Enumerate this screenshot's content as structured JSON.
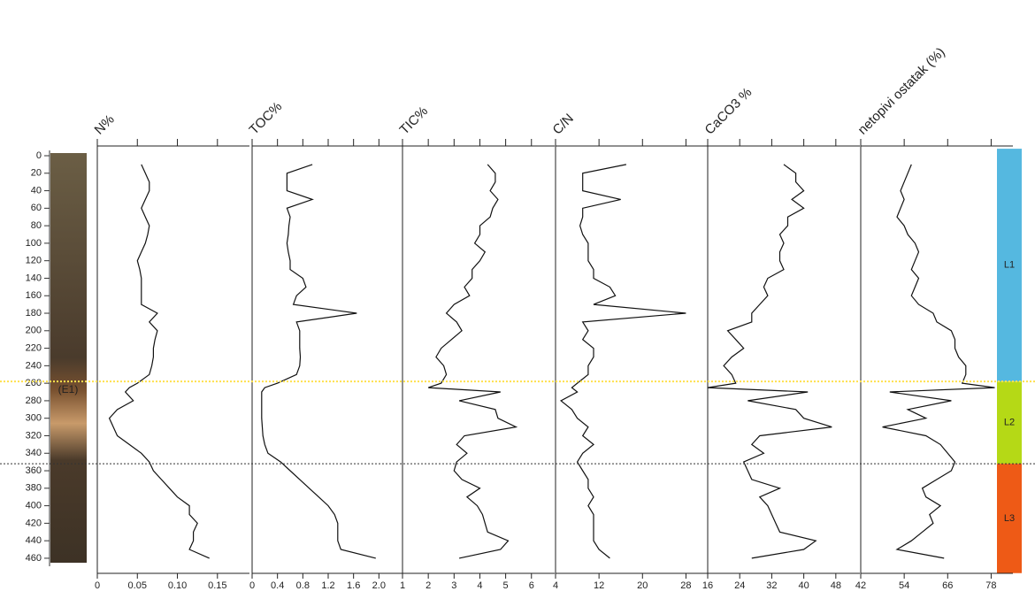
{
  "chart_data": {
    "type": "line",
    "ylim": [
      -8,
      477
    ],
    "yticks": [
      0,
      20,
      40,
      60,
      80,
      100,
      120,
      140,
      160,
      180,
      200,
      220,
      240,
      260,
      280,
      300,
      320,
      340,
      360,
      380,
      400,
      420,
      440,
      460
    ],
    "depths": [
      10,
      20,
      30,
      40,
      50,
      60,
      70,
      80,
      90,
      100,
      110,
      120,
      130,
      140,
      150,
      160,
      170,
      180,
      190,
      200,
      210,
      220,
      230,
      240,
      250,
      260,
      265,
      270,
      280,
      290,
      300,
      310,
      320,
      330,
      340,
      350,
      360,
      370,
      380,
      390,
      400,
      410,
      420,
      430,
      440,
      450,
      460
    ],
    "color": "#111111",
    "panels": [
      {
        "title": "N%",
        "xlim": [
          0,
          0.19
        ],
        "xticks": [
          0,
          0.05,
          {
            "value": 0.1,
            "label": "0.10"
          },
          0.15
        ],
        "values": [
          0.055,
          0.06,
          0.065,
          0.065,
          0.06,
          0.055,
          0.06,
          0.065,
          0.063,
          0.06,
          0.055,
          0.05,
          0.053,
          0.055,
          0.055,
          0.055,
          0.055,
          0.075,
          0.065,
          0.075,
          0.072,
          0.07,
          0.07,
          0.068,
          0.065,
          0.05,
          0.04,
          0.035,
          0.045,
          0.025,
          0.015,
          0.02,
          0.025,
          0.04,
          0.055,
          0.065,
          0.07,
          0.08,
          0.09,
          0.1,
          0.115,
          0.115,
          0.125,
          0.12,
          0.12,
          0.115,
          0.14
        ]
      },
      {
        "title": "TOC%",
        "xlim": [
          0,
          2.4
        ],
        "xticks": [
          0,
          0.4,
          0.8,
          1.2,
          1.6,
          {
            "value": 2,
            "label": "2.0"
          }
        ],
        "values": [
          0.95,
          0.55,
          0.55,
          0.55,
          0.95,
          0.55,
          0.6,
          0.58,
          0.57,
          0.55,
          0.57,
          0.6,
          0.6,
          0.8,
          0.85,
          0.7,
          0.65,
          1.65,
          0.7,
          0.75,
          0.75,
          0.75,
          0.76,
          0.75,
          0.7,
          0.4,
          0.2,
          0.15,
          0.15,
          0.15,
          0.15,
          0.16,
          0.17,
          0.2,
          0.25,
          0.45,
          0.6,
          0.75,
          0.9,
          1.05,
          1.2,
          1.3,
          1.35,
          1.35,
          1.35,
          1.4,
          1.95
        ]
      },
      {
        "title": "TIC%",
        "xlim": [
          1,
          6.9
        ],
        "xticks": [
          1,
          2,
          3,
          4,
          5,
          6
        ],
        "values": [
          4.3,
          4.6,
          4.6,
          4.4,
          4.7,
          4.5,
          4.4,
          4.0,
          4.0,
          3.8,
          4.2,
          4.0,
          3.7,
          3.7,
          3.4,
          3.6,
          3.0,
          2.7,
          3.1,
          3.3,
          2.9,
          2.5,
          2.3,
          2.6,
          2.7,
          2.5,
          2.0,
          4.8,
          3.2,
          4.6,
          4.7,
          5.4,
          3.4,
          3.1,
          3.5,
          3.1,
          3.0,
          3.3,
          4.0,
          3.5,
          3.9,
          4.1,
          4.2,
          4.3,
          5.1,
          4.8,
          3.2
        ]
      },
      {
        "title": "C/N",
        "xlim": [
          4,
          32
        ],
        "xticks": [
          4,
          12,
          20,
          28
        ],
        "values": [
          17,
          9,
          9,
          9,
          16,
          9,
          9,
          8.5,
          9,
          10,
          10,
          10,
          11,
          11,
          14,
          15,
          11,
          28,
          9,
          10,
          9,
          11,
          11,
          10,
          10,
          8,
          7,
          8,
          5,
          7,
          8,
          10,
          9,
          11,
          9,
          8,
          9,
          10,
          10,
          11,
          10,
          11,
          11,
          11,
          11,
          12,
          14
        ]
      },
      {
        "title": "CaCO3 %",
        "xlim": [
          16,
          54
        ],
        "xticks": [
          16,
          24,
          32,
          40,
          48
        ],
        "values": [
          35,
          38,
          38,
          40,
          37,
          40,
          36,
          36,
          34,
          35,
          34,
          34,
          35,
          31,
          30,
          31,
          29,
          27,
          27,
          21,
          23,
          25,
          22,
          20,
          22,
          23,
          16,
          41,
          26,
          38,
          40,
          47,
          29,
          27,
          30,
          25,
          26,
          27,
          34,
          29,
          31,
          32,
          33,
          34,
          43,
          40,
          27
        ]
      },
      {
        "title": "netopivi ostatak (%)",
        "xlim": [
          42,
          84
        ],
        "xticks": [
          42,
          54,
          66,
          78
        ],
        "values": [
          56,
          55,
          54,
          53,
          54,
          53,
          52,
          54,
          55,
          57,
          58,
          57,
          56,
          58,
          57,
          56,
          58,
          62,
          63,
          67,
          68,
          68,
          69,
          71,
          71,
          70,
          79,
          50,
          67,
          55,
          60,
          48,
          60,
          64,
          66,
          68,
          67,
          63,
          59,
          60,
          64,
          61,
          62,
          59,
          56,
          52,
          65
        ]
      }
    ],
    "zones": [
      {
        "label": "L1",
        "top": -8,
        "bottom": 258,
        "color": "#55b8e0"
      },
      {
        "label": "L2",
        "top": 258,
        "bottom": 352,
        "color": "#b5d916"
      },
      {
        "label": "L3",
        "top": 352,
        "bottom": 477,
        "color": "#ee5a16"
      }
    ],
    "boundaries": [
      {
        "depth": 258,
        "color": "#ffe14d"
      },
      {
        "depth": 352,
        "color": "#333333"
      }
    ],
    "annotation": {
      "text": "(E1)",
      "depth": 268
    }
  }
}
